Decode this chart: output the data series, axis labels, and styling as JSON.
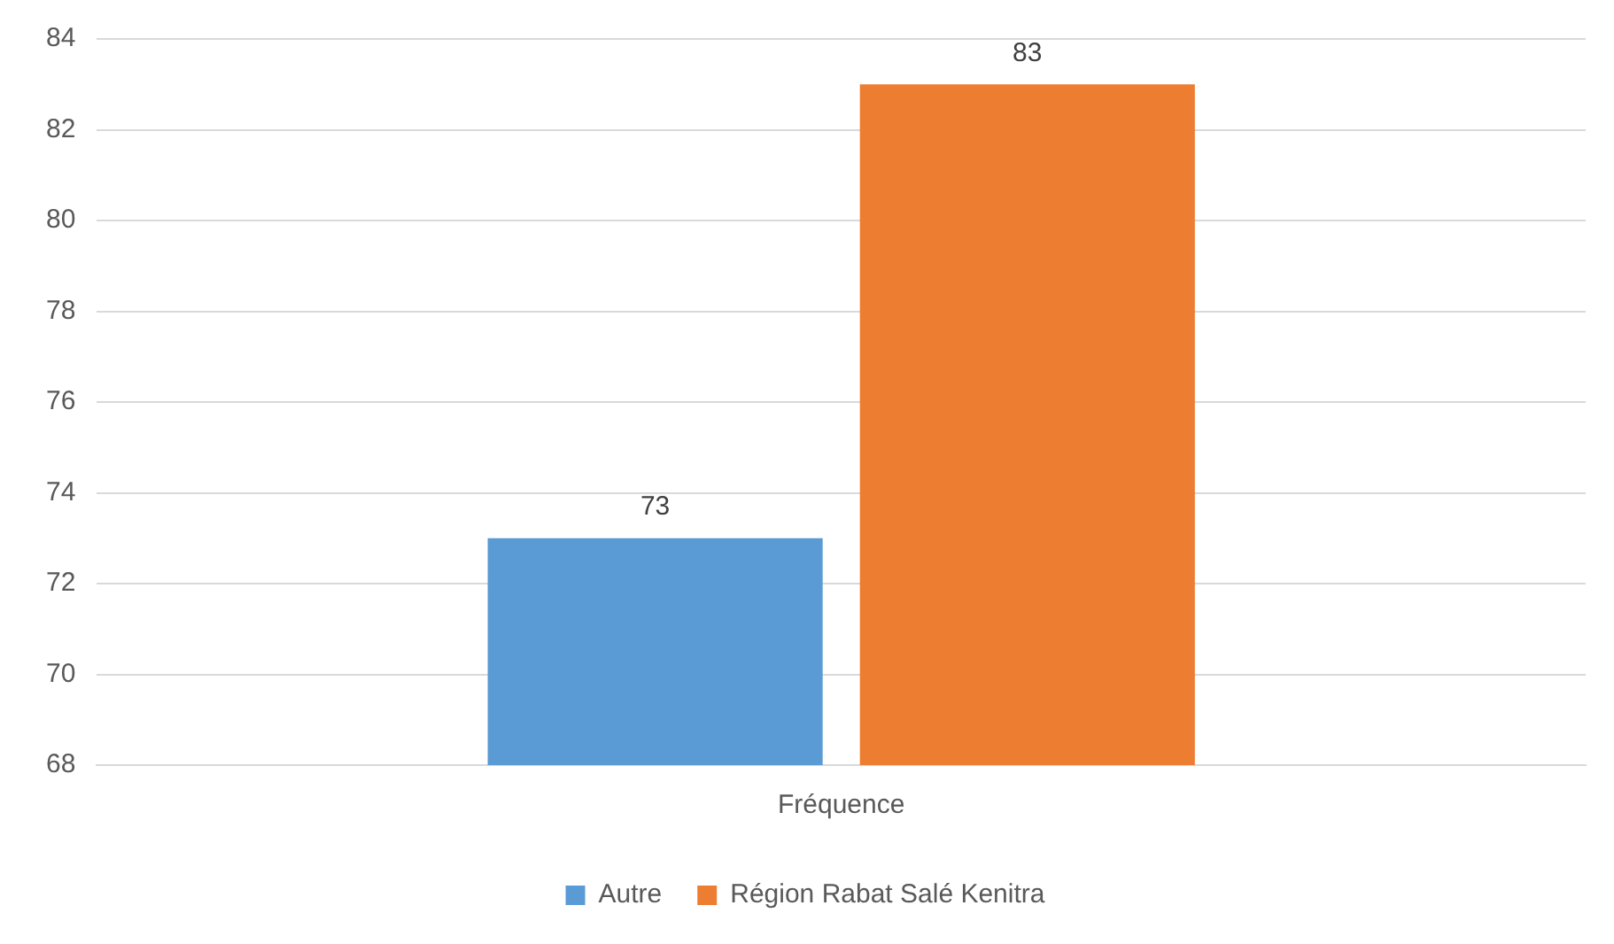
{
  "chart_data": {
    "type": "bar",
    "categories": [
      "Fréquence"
    ],
    "series": [
      {
        "name": "Autre",
        "color": "#5b9bd5",
        "values": [
          73
        ]
      },
      {
        "name": "Région Rabat Salé Kenitra",
        "color": "#ed7d31",
        "values": [
          83
        ]
      }
    ],
    "ylim": [
      68,
      84
    ],
    "yticks": [
      68,
      70,
      72,
      74,
      76,
      78,
      80,
      82,
      84
    ],
    "grid": "y",
    "legend": "bottom",
    "data_labels": true
  }
}
